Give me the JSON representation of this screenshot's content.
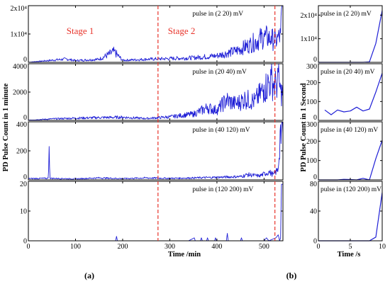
{
  "chart_data": [
    {
      "id": "a",
      "type": "line",
      "sublabel": "(a)",
      "xlabel": "Time /min",
      "ylabel": "PD Pulse Count in 1 minute",
      "xlim": [
        0,
        540
      ],
      "xticks": [
        0,
        100,
        200,
        300,
        400,
        500
      ],
      "dashed_lines_x": [
        275,
        523
      ],
      "stage_labels": [
        {
          "text": "Stage 1",
          "x": 110
        },
        {
          "text": "Stage 2",
          "x": 325
        }
      ],
      "line_color": "#1f1fd6",
      "dash_color": "#e8332a",
      "panels": [
        {
          "label": "pulse in (2 20) mV",
          "ylim": [
            0,
            20000
          ],
          "yticks": [
            {
              "v": 0,
              "t": "0"
            },
            {
              "v": 10000,
              "t": "1x10⁴"
            },
            {
              "v": 20000,
              "t": "2x10⁴"
            }
          ],
          "peaks": [
            [
              0,
              30
            ],
            [
              80,
              1300
            ],
            [
              100,
              700
            ],
            [
              150,
              1200
            ],
            [
              182,
              4200
            ],
            [
              200,
              800
            ],
            [
              250,
              1200
            ],
            [
              300,
              1500
            ],
            [
              350,
              1800
            ],
            [
              400,
              2600
            ],
            [
              440,
              4500
            ],
            [
              470,
              7000
            ],
            [
              500,
              10200
            ],
            [
              515,
              9300
            ],
            [
              525,
              8800
            ],
            [
              530,
              9600
            ],
            [
              535,
              10400
            ],
            [
              537,
              19000
            ]
          ],
          "noise": 0.55
        },
        {
          "label": "pulse in (20 40) mV",
          "ylim": [
            0,
            4000
          ],
          "yticks": [
            {
              "v": 0,
              "t": "0"
            },
            {
              "v": 2000,
              "t": "2000"
            },
            {
              "v": 4000,
              "t": "4000"
            }
          ],
          "peaks": [
            [
              0,
              20
            ],
            [
              50,
              120
            ],
            [
              100,
              180
            ],
            [
              150,
              220
            ],
            [
              200,
              250
            ],
            [
              250,
              150
            ],
            [
              300,
              280
            ],
            [
              350,
              500
            ],
            [
              380,
              1000
            ],
            [
              400,
              800
            ],
            [
              420,
              1600
            ],
            [
              440,
              1300
            ],
            [
              460,
              1700
            ],
            [
              480,
              1500
            ],
            [
              500,
              2500
            ],
            [
              515,
              3200
            ],
            [
              525,
              2700
            ],
            [
              530,
              3400
            ],
            [
              535,
              2200
            ]
          ],
          "noise": 0.55
        },
        {
          "label": "pulse in (40 120) mV",
          "ylim": [
            0,
            400
          ],
          "yticks": [
            {
              "v": 0,
              "t": "0"
            },
            {
              "v": 200,
              "t": "200"
            },
            {
              "v": 400,
              "t": "400"
            }
          ],
          "peaks": [
            [
              0,
              10
            ],
            [
              42,
              12
            ],
            [
              44,
              230
            ],
            [
              46,
              12
            ],
            [
              100,
              8
            ],
            [
              150,
              15
            ],
            [
              200,
              10
            ],
            [
              250,
              15
            ],
            [
              300,
              12
            ],
            [
              350,
              15
            ],
            [
              400,
              20
            ],
            [
              450,
              25
            ],
            [
              465,
              40
            ],
            [
              490,
              30
            ],
            [
              510,
              60
            ],
            [
              520,
              40
            ],
            [
              530,
              80
            ],
            [
              535,
              380
            ]
          ],
          "noise": 0.5
        },
        {
          "label": "pulse in (120 200) mV",
          "ylim": [
            0,
            20
          ],
          "yticks": [
            {
              "v": 0,
              "t": "0"
            },
            {
              "v": 10,
              "t": "10"
            },
            {
              "v": 20,
              "t": "20"
            }
          ],
          "peaks": [
            [
              0,
              0
            ],
            [
              185,
              0
            ],
            [
              187,
              1.5
            ],
            [
              189,
              0
            ],
            [
              340,
              0
            ],
            [
              352,
              1
            ],
            [
              354,
              0
            ],
            [
              365,
              0
            ],
            [
              367,
              1
            ],
            [
              369,
              0
            ],
            [
              378,
              0
            ],
            [
              380,
              1
            ],
            [
              382,
              0
            ],
            [
              395,
              0
            ],
            [
              397,
              1
            ],
            [
              399,
              0
            ],
            [
              420,
              0
            ],
            [
              422,
              2.5
            ],
            [
              424,
              0
            ],
            [
              450,
              0
            ],
            [
              452,
              1
            ],
            [
              454,
              0
            ],
            [
              500,
              0
            ],
            [
              505,
              1
            ],
            [
              510,
              0
            ],
            [
              525,
              1
            ],
            [
              530,
              2
            ],
            [
              533,
              0
            ],
            [
              535,
              1
            ],
            [
              537,
              19
            ]
          ],
          "noise": 0
        }
      ]
    },
    {
      "id": "b",
      "type": "line",
      "sublabel": "(b)",
      "xlabel": "Time /s",
      "ylabel": "PD Pulse Count in 1 Second",
      "xlim": [
        0,
        10
      ],
      "xticks": [
        0,
        5,
        10
      ],
      "line_color": "#1f1fd6",
      "panels": [
        {
          "label": "pulse in (2 20) mV",
          "ylim": [
            0,
            24000
          ],
          "yticks": [
            {
              "v": 0,
              "t": "0"
            },
            {
              "v": 10000,
              "t": "1x10⁴"
            },
            {
              "v": 20000,
              "t": "2x10⁴"
            }
          ],
          "x": [
            0,
            1,
            2,
            3,
            4,
            5,
            6,
            7,
            8,
            9,
            10
          ],
          "y": [
            0,
            0,
            0,
            0,
            0,
            0,
            0,
            0,
            200,
            8000,
            22000
          ]
        },
        {
          "label": "pulse in (20 40) mV",
          "ylim": [
            0,
            300
          ],
          "yticks": [
            {
              "v": 0,
              "t": "0"
            },
            {
              "v": 100,
              "t": "100"
            },
            {
              "v": 200,
              "t": "200"
            },
            {
              "v": 300,
              "t": "300"
            }
          ],
          "x": [
            1,
            2,
            3,
            4,
            5,
            6,
            7,
            8,
            9,
            10
          ],
          "y": [
            55,
            30,
            55,
            45,
            50,
            70,
            50,
            60,
            150,
            250
          ]
        },
        {
          "label": "pulse in (40 120) mV",
          "ylim": [
            0,
            300
          ],
          "yticks": [
            {
              "v": 0,
              "t": "0"
            },
            {
              "v": 100,
              "t": "100"
            },
            {
              "v": 200,
              "t": "200"
            },
            {
              "v": 300,
              "t": "300"
            }
          ],
          "x": [
            0,
            1,
            2,
            3,
            4,
            5,
            6,
            7,
            8,
            9,
            10
          ],
          "y": [
            0,
            0,
            0,
            0,
            3,
            2,
            0,
            8,
            0,
            110,
            205
          ]
        },
        {
          "label": "pulse in (120 200) mV",
          "ylim": [
            0,
            80
          ],
          "yticks": [
            {
              "v": 0,
              "t": "0"
            },
            {
              "v": 40,
              "t": "40"
            },
            {
              "v": 80,
              "t": "80"
            }
          ],
          "x": [
            0,
            1,
            2,
            3,
            4,
            5,
            6,
            7,
            8,
            9,
            10
          ],
          "y": [
            0,
            0,
            0,
            0,
            0,
            0,
            0,
            0,
            0,
            5,
            65
          ]
        }
      ]
    }
  ]
}
